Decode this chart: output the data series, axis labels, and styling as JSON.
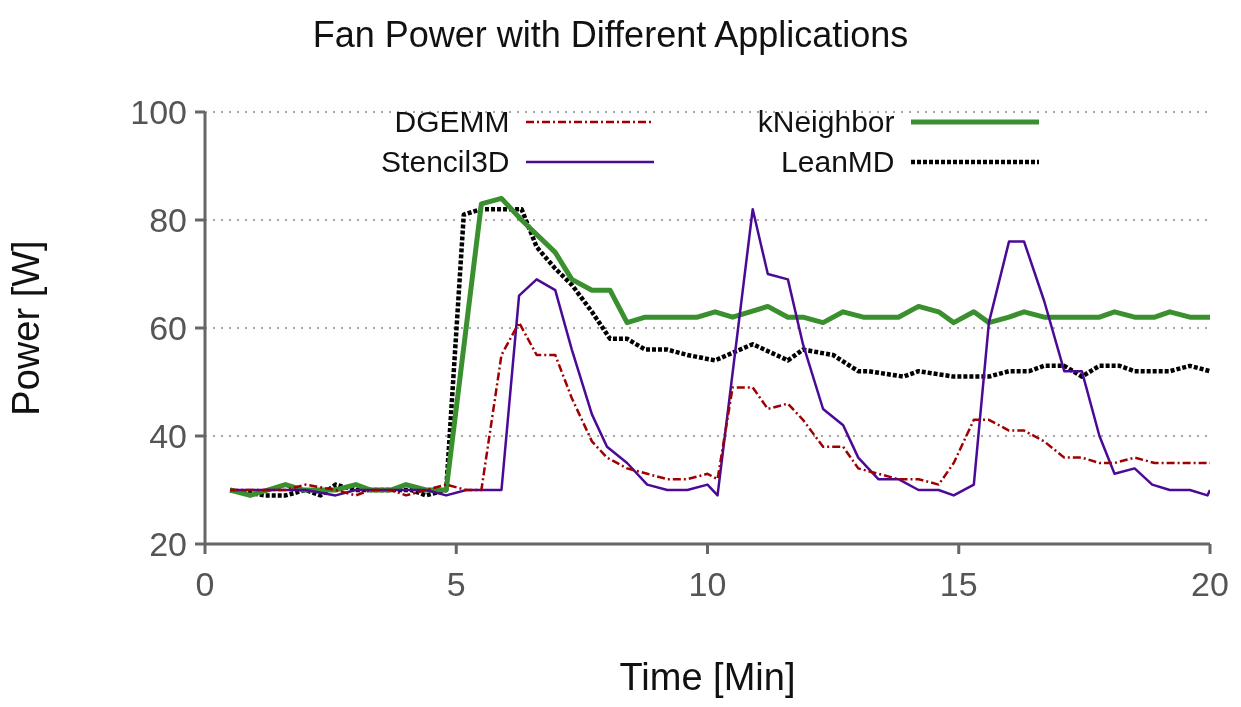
{
  "chart_data": {
    "type": "line",
    "title": "Fan Power with Different Applications",
    "xlabel": "Time [Min]",
    "ylabel": "Power [W]",
    "xlim": [
      0,
      20
    ],
    "xticks": [
      0,
      5,
      10,
      15,
      20
    ],
    "ylim": [
      20,
      100
    ],
    "yticks": [
      20,
      40,
      60,
      80,
      100
    ],
    "grid": "y",
    "legend": "top",
    "marker": "none",
    "series": [
      {
        "name": "DGEMM",
        "color": "#a00000",
        "line_style": "dashed",
        "x": [
          0.5,
          1.2,
          1.6,
          2.0,
          2.6,
          3.0,
          3.3,
          3.7,
          4.0,
          4.4,
          4.8,
          5.2,
          5.5,
          5.9,
          6.25,
          6.6,
          6.97,
          7.3,
          7.7,
          8.0,
          8.4,
          8.8,
          9.2,
          9.6,
          10.0,
          10.2,
          10.5,
          10.9,
          11.2,
          11.6,
          11.9,
          12.3,
          12.7,
          13.0,
          13.4,
          13.8,
          14.2,
          14.6,
          14.9,
          15.3,
          15.6,
          16.0,
          16.3,
          16.7,
          17.1,
          17.45,
          17.8,
          18.1,
          18.5,
          18.9,
          19.2,
          19.6,
          20.0
        ],
        "values": [
          30,
          30,
          30,
          31,
          30,
          29,
          30,
          30,
          29,
          30,
          31,
          30,
          30,
          55,
          61,
          55,
          55,
          47,
          39,
          36,
          34,
          33,
          32,
          32,
          33,
          32,
          49,
          49,
          45,
          46,
          43,
          38,
          38,
          34,
          33,
          32,
          32,
          31,
          35,
          43,
          43,
          41,
          41,
          39,
          36,
          36,
          35,
          35,
          36,
          35,
          35,
          35,
          35
        ]
      },
      {
        "name": "Stencil3D",
        "color": "#4b0a96",
        "line_style": "solid",
        "x": [
          0.5,
          1.2,
          2.0,
          2.6,
          3.0,
          3.7,
          4.4,
          4.8,
          5.2,
          5.9,
          6.25,
          6.6,
          6.97,
          7.3,
          7.7,
          8.0,
          8.4,
          8.8,
          9.2,
          9.6,
          10.0,
          10.2,
          10.9,
          11.2,
          11.6,
          11.9,
          12.3,
          12.7,
          13.0,
          13.4,
          13.8,
          14.2,
          14.6,
          14.9,
          15.3,
          15.6,
          16.0,
          16.3,
          16.7,
          17.1,
          17.45,
          17.8,
          18.1,
          18.5,
          18.85,
          19.2,
          19.6,
          19.95,
          20.0
        ],
        "values": [
          30,
          30,
          30,
          29,
          30,
          30,
          30,
          29,
          30,
          30,
          66,
          69,
          67,
          56,
          44,
          38,
          35,
          31,
          30,
          30,
          31,
          29,
          82,
          70,
          69,
          57,
          45,
          42,
          36,
          32,
          32,
          30,
          30,
          29,
          31,
          61,
          76,
          76,
          65,
          52,
          52,
          40,
          33,
          34,
          31,
          30,
          30,
          29,
          30
        ]
      },
      {
        "name": "kNeighbor",
        "color": "#3a8f2f",
        "line_style": "solid",
        "x": [
          0.5,
          0.9,
          1.6,
          1.95,
          2.6,
          3.0,
          3.3,
          3.7,
          4.0,
          4.4,
          4.8,
          5.5,
          5.9,
          6.3,
          6.97,
          7.3,
          7.7,
          8.06,
          8.4,
          8.76,
          9.8,
          10.15,
          10.5,
          11.2,
          11.6,
          11.9,
          12.3,
          12.7,
          13.1,
          13.8,
          14.2,
          14.6,
          14.9,
          15.3,
          15.6,
          16.0,
          16.3,
          16.7,
          17.8,
          18.1,
          18.5,
          18.9,
          19.2,
          19.6,
          20.0
        ],
        "values": [
          30,
          29,
          31,
          30,
          30,
          31,
          30,
          30,
          31,
          30,
          30,
          83,
          84,
          80,
          74,
          69,
          67,
          67,
          61,
          62,
          62,
          63,
          62,
          64,
          62,
          62,
          61,
          63,
          62,
          62,
          64,
          63,
          61,
          63,
          61,
          62,
          63,
          62,
          62,
          63,
          62,
          62,
          63,
          62,
          62
        ]
      },
      {
        "name": "LeanMD",
        "color": "#000000",
        "line_style": "dotted",
        "x": [
          0.5,
          1.2,
          1.6,
          2.0,
          2.3,
          2.6,
          3.0,
          4.1,
          4.4,
          4.8,
          5.15,
          5.5,
          6.3,
          6.6,
          6.97,
          7.3,
          7.7,
          8.06,
          8.4,
          8.76,
          9.2,
          9.6,
          10.15,
          10.9,
          11.6,
          11.9,
          12.5,
          13.0,
          13.2,
          13.9,
          14.2,
          14.9,
          15.6,
          16.0,
          16.4,
          16.7,
          17.1,
          17.45,
          17.8,
          18.2,
          18.5,
          19.2,
          19.6,
          20.0
        ],
        "values": [
          30,
          29,
          29,
          30,
          29,
          31,
          30,
          30,
          29,
          30,
          81,
          82,
          82,
          75,
          71,
          68,
          63,
          58,
          58,
          56,
          56,
          55,
          54,
          57,
          54,
          56,
          55,
          52,
          52,
          51,
          52,
          51,
          51,
          52,
          52,
          53,
          53,
          51,
          53,
          53,
          52,
          52,
          53,
          52
        ]
      }
    ]
  }
}
